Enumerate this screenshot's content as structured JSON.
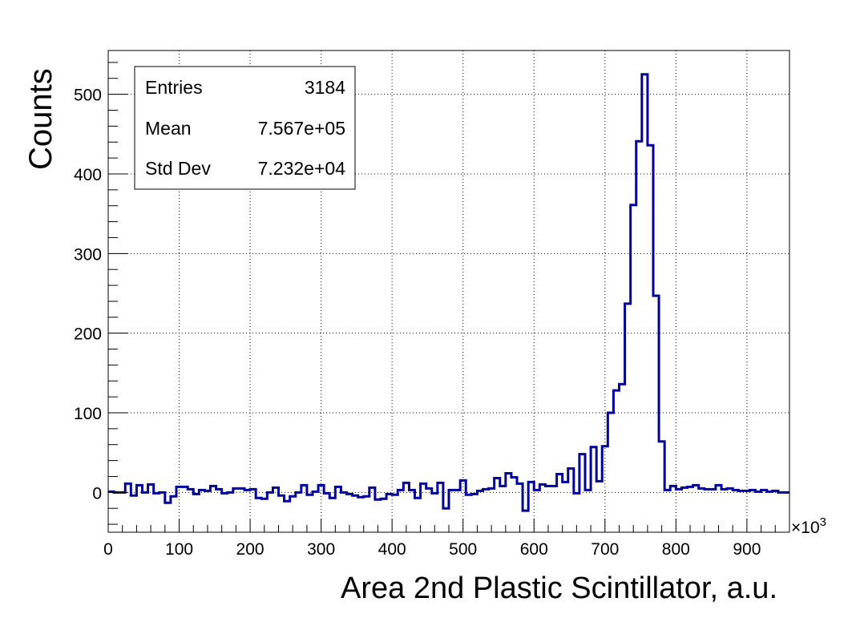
{
  "chart_data": {
    "type": "bar",
    "title": "",
    "xlabel": "Area 2nd Plastic Scintillator, a.u.",
    "ylabel": "Counts",
    "x_multiplier_label": "×10",
    "x_multiplier_exp": "3",
    "xlim": [
      0,
      960
    ],
    "ylim": [
      -50,
      555
    ],
    "grid": true,
    "line_color": "#000099",
    "x_ticks": [
      0,
      100,
      200,
      300,
      400,
      500,
      600,
      700,
      800,
      900
    ],
    "y_ticks": [
      0,
      100,
      200,
      300,
      400,
      500
    ],
    "bin_width": 8,
    "bin_start": 0,
    "values": [
      1,
      0,
      0,
      11,
      -4,
      9,
      0,
      10,
      -1,
      0,
      -13,
      -5,
      7,
      7,
      4,
      -2,
      3,
      2,
      8,
      4,
      -1,
      0,
      5,
      5,
      3,
      4,
      -7,
      -8,
      0,
      6,
      -4,
      -11,
      -5,
      0,
      9,
      -3,
      1,
      9,
      -1,
      -7,
      7,
      0,
      -2,
      -4,
      -6,
      -5,
      6,
      -9,
      -8,
      -2,
      -3,
      3,
      12,
      3,
      -7,
      11,
      5,
      -1,
      12,
      -20,
      3,
      3,
      15,
      -3,
      -2,
      2,
      4,
      5,
      18,
      8,
      24,
      19,
      11,
      -23,
      13,
      3,
      10,
      8,
      8,
      23,
      13,
      30,
      -1,
      48,
      3,
      57,
      14,
      58,
      100,
      128,
      136,
      237,
      361,
      441,
      525,
      436,
      247,
      64,
      3,
      8,
      4,
      6,
      7,
      9,
      5,
      4,
      4,
      9,
      4,
      5,
      3,
      2,
      2,
      3,
      1,
      3,
      1,
      2,
      0,
      0
    ],
    "legend": {
      "placement": "top-left",
      "entries": [
        {
          "label": "Entries",
          "value": "3184"
        },
        {
          "label": "Mean",
          "value": "7.567e+05"
        },
        {
          "label": "Std Dev",
          "value": "7.232e+04"
        }
      ]
    }
  }
}
